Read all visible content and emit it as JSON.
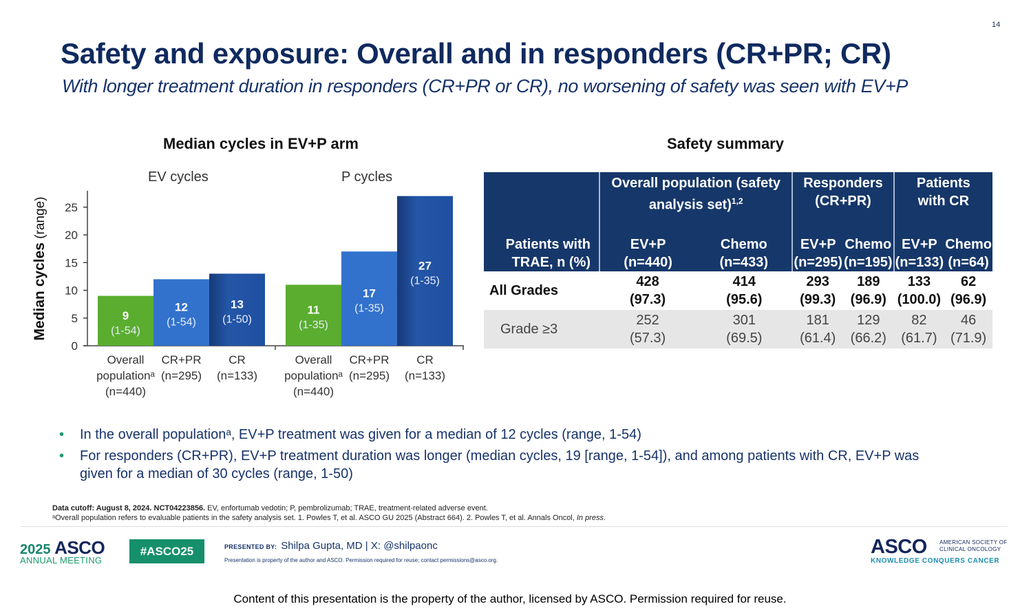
{
  "slide": {
    "page_number": "14",
    "title": "Safety and exposure: Overall and in responders (CR+PR; CR)",
    "subtitle": "With longer treatment duration in responders (CR+PR or CR), no worsening of safety was seen with EV+P"
  },
  "chart_data": {
    "type": "bar",
    "title": "Median cycles in EV+P arm",
    "ylabel_bold": "Median cycles",
    "ylabel_rest": " (range)",
    "ylim": [
      0,
      28
    ],
    "yticks": [
      0,
      5,
      10,
      15,
      20,
      25
    ],
    "grid": false,
    "colors": {
      "overall": "#5aad2f",
      "crpr": "#3272cc",
      "cr": "#1e4d9e"
    },
    "panels": [
      {
        "name": "EV cycles",
        "categories": [
          {
            "lines": [
              "Overall",
              "populationᵃ",
              "(n=440)"
            ],
            "key": "overall"
          },
          {
            "lines": [
              "CR+PR",
              "(n=295)"
            ],
            "key": "crpr"
          },
          {
            "lines": [
              "CR",
              "(n=133)"
            ],
            "key": "cr"
          }
        ],
        "values": [
          9,
          12,
          13
        ],
        "ranges": [
          "(1-54)",
          "(1-54)",
          "(1-50)"
        ]
      },
      {
        "name": "P cycles",
        "categories": [
          {
            "lines": [
              "Overall",
              "populationᵃ",
              "(n=440)"
            ],
            "key": "overall"
          },
          {
            "lines": [
              "CR+PR",
              "(n=295)"
            ],
            "key": "crpr"
          },
          {
            "lines": [
              "CR",
              "(n=133)"
            ],
            "key": "cr"
          }
        ],
        "values": [
          11,
          17,
          27
        ],
        "ranges": [
          "(1-35)",
          "(1-35)",
          "(1-35)"
        ]
      }
    ]
  },
  "safety_table": {
    "title": "Safety summary",
    "row_header": "Patients with TRAE, n (%)",
    "groups": [
      {
        "label": "Overall population (safety analysis set)",
        "sup": "1,2"
      },
      {
        "label": "Responders (CR+PR)",
        "sup": ""
      },
      {
        "label": "Patients with CR",
        "sup": ""
      }
    ],
    "columns": [
      {
        "arm": "EV+P",
        "n": "(n=440)"
      },
      {
        "arm": "Chemo",
        "n": "(n=433)"
      },
      {
        "arm": "EV+P",
        "n": "(n=295)"
      },
      {
        "arm": "Chemo",
        "n": "(n=195)"
      },
      {
        "arm": "EV+P",
        "n": "(n=133)"
      },
      {
        "arm": "Chemo",
        "n": "(n=64)"
      }
    ],
    "rows": [
      {
        "label": "All Grades",
        "cells": [
          {
            "n": "428",
            "pct": "(97.3)"
          },
          {
            "n": "414",
            "pct": "(95.6)"
          },
          {
            "n": "293",
            "pct": "(99.3)"
          },
          {
            "n": "189",
            "pct": "(96.9)"
          },
          {
            "n": "133",
            "pct": "(100.0)"
          },
          {
            "n": "62",
            "pct": "(96.9)"
          }
        ]
      },
      {
        "label": "Grade ≥3",
        "cells": [
          {
            "n": "252",
            "pct": "(57.3)"
          },
          {
            "n": "301",
            "pct": "(69.5)"
          },
          {
            "n": "181",
            "pct": "(61.4)"
          },
          {
            "n": "129",
            "pct": "(66.2)"
          },
          {
            "n": "82",
            "pct": "(61.7)"
          },
          {
            "n": "46",
            "pct": "(71.9)"
          }
        ]
      }
    ]
  },
  "bullets": [
    "In the overall populationᵃ, EV+P treatment was given for a median of 12 cycles (range, 1-54)",
    "For responders (CR+PR), EV+P treatment duration was longer (median cycles, 19 [range, 1-54]), and among patients with CR, EV+P was given for a median of 30 cycles (range, 1-50)"
  ],
  "footnotes": {
    "line1_bold": "Data cutoff: August 8, 2024. NCT04223856.",
    "line1_rest": " EV, enfortumab vedotin; P, pembrolizumab; TRAE, treatment-related adverse event.",
    "line2": "ᵃOverall population refers to evaluable patients in the safety analysis set. 1. Powles T, et al. ASCO GU 2025 (Abstract 664). 2. Powles T, et al. Annals Oncol, ",
    "line2_italic": "In press",
    "line2_end": "."
  },
  "footer": {
    "year": "2025",
    "asco": "ASCO",
    "annual_meeting": "ANNUAL MEETING",
    "hashtag": "#ASCO25",
    "presented_by_label": "PRESENTED BY:",
    "presenter": "Shilpa Gupta, MD | X: @shilpaonc",
    "presentation_note": "Presentation is property of the author and ASCO. Permission required for reuse; contact permissions@asco.org.",
    "logo": "ASCO",
    "society_line1": "AMERICAN SOCIETY OF",
    "society_line2": "CLINICAL ONCOLOGY",
    "tagline": "KNOWLEDGE CONQUERS CANCER"
  },
  "copyright": "Content of this presentation is the property of the author, licensed by ASCO. Permission required for reuse."
}
